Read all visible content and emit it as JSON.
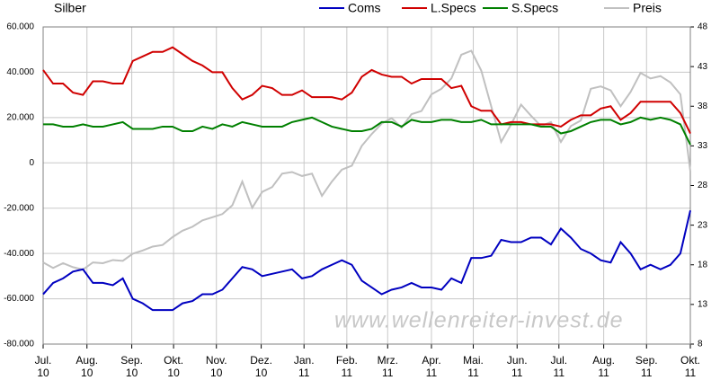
{
  "chart_data": {
    "type": "line",
    "title": "Silber",
    "watermark": "www.wellenreiter-invest.de",
    "x": [
      0,
      1,
      2,
      3,
      4,
      5,
      6,
      7,
      8,
      9,
      10,
      11,
      12,
      13,
      14,
      15,
      16,
      17,
      18,
      19,
      20,
      21,
      22,
      23,
      24,
      25,
      26,
      27,
      28,
      29,
      30,
      31,
      32,
      33,
      34,
      35,
      36,
      37,
      38,
      39,
      40,
      41,
      42,
      43,
      44,
      45,
      46,
      47,
      48,
      49,
      50,
      51,
      52,
      53,
      54,
      55,
      56,
      57,
      58,
      59,
      60,
      61,
      62,
      63,
      64,
      65
    ],
    "xlim": [
      0,
      65
    ],
    "xticks": [
      {
        "value": 0,
        "label": "Jul.\n10"
      },
      {
        "value": 4.4,
        "label": "Aug.\n10"
      },
      {
        "value": 8.9,
        "label": "Sep.\n10"
      },
      {
        "value": 13.1,
        "label": "Okt.\n10"
      },
      {
        "value": 17.4,
        "label": "Nov.\n10"
      },
      {
        "value": 21.9,
        "label": "Dez.\n10"
      },
      {
        "value": 26.2,
        "label": "Jan.\n11"
      },
      {
        "value": 30.5,
        "label": "Feb.\n11"
      },
      {
        "value": 34.6,
        "label": "Mrz.\n11"
      },
      {
        "value": 39.0,
        "label": "Apr.\n11"
      },
      {
        "value": 43.2,
        "label": "Mai.\n11"
      },
      {
        "value": 47.6,
        "label": "Jun.\n11"
      },
      {
        "value": 51.8,
        "label": "Jul.\n11"
      },
      {
        "value": 56.3,
        "label": "Aug.\n11"
      },
      {
        "value": 60.6,
        "label": "Sep.\n11"
      },
      {
        "value": 65,
        "label": "Okt.\n11"
      }
    ],
    "ylim": [
      -80000,
      60000
    ],
    "yticks": [
      {
        "value": -80000,
        "label": "-80.000"
      },
      {
        "value": -60000,
        "label": "-60.000"
      },
      {
        "value": -40000,
        "label": "-40.000"
      },
      {
        "value": -20000,
        "label": "-20.000"
      },
      0,
      {
        "value": 20000,
        "label": "20.000"
      },
      {
        "value": 40000,
        "label": "40.000"
      },
      {
        "value": 60000,
        "label": "60.000"
      }
    ],
    "y2lim": [
      8,
      48
    ],
    "y2ticks": [
      8,
      13,
      18,
      23,
      28,
      33,
      38,
      43,
      48
    ],
    "grid": true,
    "series": [
      {
        "name": "Coms",
        "color": "#0000c0",
        "values": [
          -58000,
          -53000,
          -51000,
          -48000,
          -47000,
          -53000,
          -53000,
          -54000,
          -51000,
          -60000,
          -62000,
          -65000,
          -65000,
          -65000,
          -62000,
          -61000,
          -58000,
          -58000,
          -56000,
          -51000,
          -46000,
          -47000,
          -50000,
          -49000,
          -48000,
          -47000,
          -51000,
          -50000,
          -47000,
          -45000,
          -43000,
          -45000,
          -52000,
          -55000,
          -58000,
          -56000,
          -55000,
          -53000,
          -55000,
          -55000,
          -56000,
          -51000,
          -53000,
          -42000,
          -42000,
          -41000,
          -34000,
          -35000,
          -35000,
          -33000,
          -33000,
          -36000,
          -29000,
          -33000,
          -38000,
          -40000,
          -43000,
          -44000,
          -35000,
          -40000,
          -47000,
          -45000,
          -47000,
          -45000,
          -40000,
          -21000
        ]
      },
      {
        "name": "L.Specs",
        "color": "#d00000",
        "values": [
          41000,
          35000,
          35000,
          31000,
          30000,
          36000,
          36000,
          35000,
          35000,
          45000,
          47000,
          49000,
          49000,
          51000,
          48000,
          45000,
          43000,
          40000,
          40000,
          33000,
          28000,
          30000,
          34000,
          33000,
          30000,
          30000,
          32000,
          29000,
          29000,
          29000,
          28000,
          31000,
          38000,
          41000,
          39000,
          38000,
          38000,
          35000,
          37000,
          37000,
          37000,
          33000,
          34000,
          25000,
          23000,
          23000,
          17000,
          18000,
          18000,
          17000,
          17000,
          17000,
          16000,
          19000,
          21000,
          21000,
          24000,
          25000,
          19000,
          22000,
          27000,
          27000,
          27000,
          27000,
          22000,
          13000
        ]
      },
      {
        "name": "S.Specs",
        "color": "#008000",
        "values": [
          17000,
          17000,
          16000,
          16000,
          17000,
          16000,
          16000,
          17000,
          18000,
          15000,
          15000,
          15000,
          16000,
          16000,
          14000,
          14000,
          16000,
          15000,
          17000,
          16000,
          18000,
          17000,
          16000,
          16000,
          16000,
          18000,
          19000,
          20000,
          18000,
          16000,
          15000,
          14000,
          14000,
          15000,
          18000,
          18000,
          16000,
          19000,
          18000,
          18000,
          19000,
          19000,
          18000,
          18000,
          19000,
          17000,
          17000,
          17000,
          17000,
          17000,
          16000,
          16000,
          13000,
          14000,
          16000,
          18000,
          19000,
          19000,
          17000,
          18000,
          20000,
          19000,
          20000,
          19000,
          17000,
          8000
        ]
      },
      {
        "name": "Preis",
        "color": "#c0c0c0",
        "axis": "y2",
        "values": [
          18.3,
          17.6,
          18.2,
          17.7,
          17.4,
          18.3,
          18.2,
          18.6,
          18.5,
          19.4,
          19.8,
          20.3,
          20.5,
          21.5,
          22.3,
          22.8,
          23.6,
          24,
          24.4,
          25.5,
          28.5,
          25.2,
          27.2,
          27.8,
          29.5,
          29.7,
          29.2,
          29.5,
          26.7,
          28.5,
          30,
          30.5,
          33,
          34.5,
          35.8,
          36.5,
          35.3,
          37,
          37.4,
          39.5,
          40.2,
          41.5,
          44.5,
          45,
          42.5,
          38,
          33.5,
          35.7,
          38.2,
          36.8,
          35.5,
          36,
          33.5,
          35.5,
          36.2,
          40.2,
          40.5,
          40,
          38,
          39.8,
          42.2,
          41.5,
          41.8,
          41,
          39.5,
          29.8
        ]
      }
    ]
  }
}
